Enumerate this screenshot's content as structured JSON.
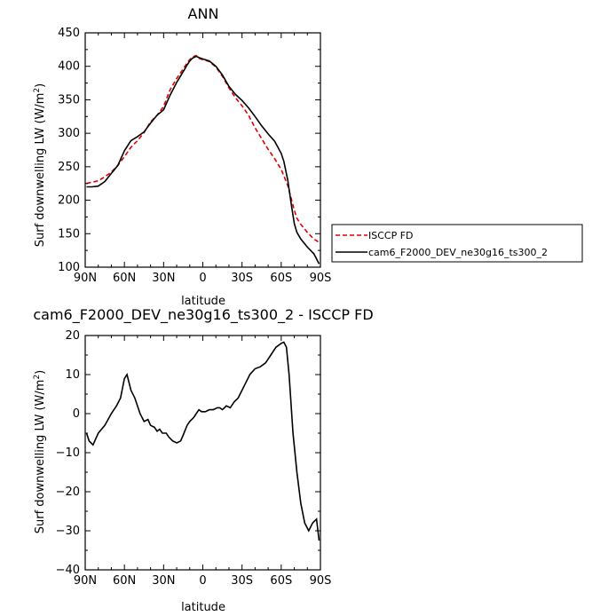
{
  "chart_data": [
    {
      "type": "line",
      "title": "ANN",
      "xlabel": "latitude",
      "ylabel": "Surf downwelling LW (W/m",
      "ylabel_sup": "2",
      "ylabel_end": ")",
      "xlim": [
        90,
        -90
      ],
      "ylim": [
        100,
        450
      ],
      "xticks": [
        90,
        60,
        30,
        0,
        -30,
        -60,
        -90
      ],
      "xtick_labels": [
        "90N",
        "60N",
        "30N",
        "0",
        "30S",
        "60S",
        "90S"
      ],
      "yticks": [
        100,
        150,
        200,
        250,
        300,
        350,
        400,
        450
      ],
      "ytick_labels": [
        "100",
        "150",
        "200",
        "250",
        "300",
        "350",
        "400",
        "450"
      ],
      "grid": false,
      "legend_position": "right",
      "series": [
        {
          "name": "ISCCP FD",
          "color": "#e00000",
          "dash": "dashed",
          "x": [
            89,
            80,
            75,
            70,
            65,
            60,
            55,
            50,
            45,
            40,
            35,
            30,
            25,
            20,
            15,
            12,
            10,
            8,
            5,
            3,
            0,
            -5,
            -10,
            -15,
            -20,
            -25,
            -30,
            -35,
            -40,
            -45,
            -50,
            -55,
            -60,
            -65,
            -68,
            -70,
            -72,
            -75,
            -80,
            -85,
            -89
          ],
          "y": [
            225,
            229,
            235,
            242,
            252,
            265,
            279,
            289,
            301,
            317,
            327,
            340,
            365,
            382,
            396,
            405,
            410,
            414,
            416,
            412,
            410,
            407,
            399,
            385,
            368,
            353,
            341,
            327,
            308,
            292,
            276,
            262,
            246,
            222,
            200,
            185,
            173,
            164,
            152,
            142,
            137
          ]
        },
        {
          "name": "cam6_F2000_DEV_ne30g16_ts300_2",
          "color": "#000000",
          "dash": "solid",
          "x": [
            89,
            85,
            80,
            75,
            70,
            65,
            60,
            55,
            50,
            45,
            40,
            35,
            30,
            25,
            20,
            15,
            12,
            10,
            8,
            5,
            3,
            0,
            -5,
            -10,
            -15,
            -20,
            -25,
            -30,
            -35,
            -40,
            -45,
            -50,
            -55,
            -60,
            -62,
            -65,
            -68,
            -70,
            -72,
            -75,
            -80,
            -85,
            -89
          ],
          "y": [
            220,
            220,
            221,
            228,
            240,
            252,
            274,
            289,
            295,
            302,
            315,
            327,
            335,
            357,
            376,
            392,
            402,
            408,
            412,
            415,
            413,
            411,
            408,
            400,
            387,
            370,
            358,
            349,
            338,
            325,
            311,
            299,
            288,
            270,
            258,
            230,
            190,
            165,
            152,
            142,
            130,
            120,
            105
          ]
        }
      ]
    },
    {
      "type": "line",
      "title": "cam6_F2000_DEV_ne30g16_ts300_2 - ISCCP FD",
      "xlabel": "latitude",
      "ylabel": "Surf downwelling LW (W/m",
      "ylabel_sup": "2",
      "ylabel_end": ")",
      "xlim": [
        90,
        -90
      ],
      "ylim": [
        -40,
        20
      ],
      "xticks": [
        90,
        60,
        30,
        0,
        -30,
        -60,
        -90
      ],
      "xtick_labels": [
        "90N",
        "60N",
        "30N",
        "0",
        "30S",
        "60S",
        "90S"
      ],
      "yticks": [
        -40,
        -30,
        -20,
        -10,
        0,
        10,
        20
      ],
      "ytick_labels": [
        "−40",
        "−30",
        "−20",
        "−10",
        "0",
        "10",
        "20"
      ],
      "grid": false,
      "series": [
        {
          "color": "#000000",
          "dash": "solid",
          "x": [
            89,
            87,
            84,
            80,
            75,
            70,
            66,
            63,
            60,
            58,
            55,
            52,
            48,
            45,
            42,
            40,
            37,
            35,
            33,
            31,
            28,
            26,
            23,
            20,
            17,
            15,
            12,
            10,
            7,
            5,
            3,
            1,
            -2,
            -5,
            -8,
            -11,
            -13,
            -15,
            -18,
            -21,
            -24,
            -27,
            -30,
            -33,
            -36,
            -40,
            -44,
            -48,
            -52,
            -56,
            -60,
            -62,
            -64,
            -66,
            -69,
            -72,
            -75,
            -78,
            -81,
            -84,
            -87,
            -89
          ],
          "y": [
            -5,
            -7,
            -8,
            -5,
            -3,
            0,
            2,
            4,
            9,
            10,
            6,
            4,
            0,
            -2,
            -1.5,
            -3,
            -3.5,
            -4.5,
            -4,
            -5,
            -5,
            -6,
            -7,
            -7.5,
            -7,
            -5.5,
            -3,
            -2,
            -1,
            0,
            1,
            0.5,
            0.5,
            1,
            1,
            1.5,
            1.5,
            1,
            2,
            1.5,
            3,
            4,
            6,
            8,
            10,
            11.5,
            12,
            13,
            15,
            17,
            18,
            18.3,
            17,
            10,
            -5,
            -15,
            -23,
            -28,
            -30,
            -28,
            -27,
            -32.5
          ]
        }
      ]
    }
  ]
}
